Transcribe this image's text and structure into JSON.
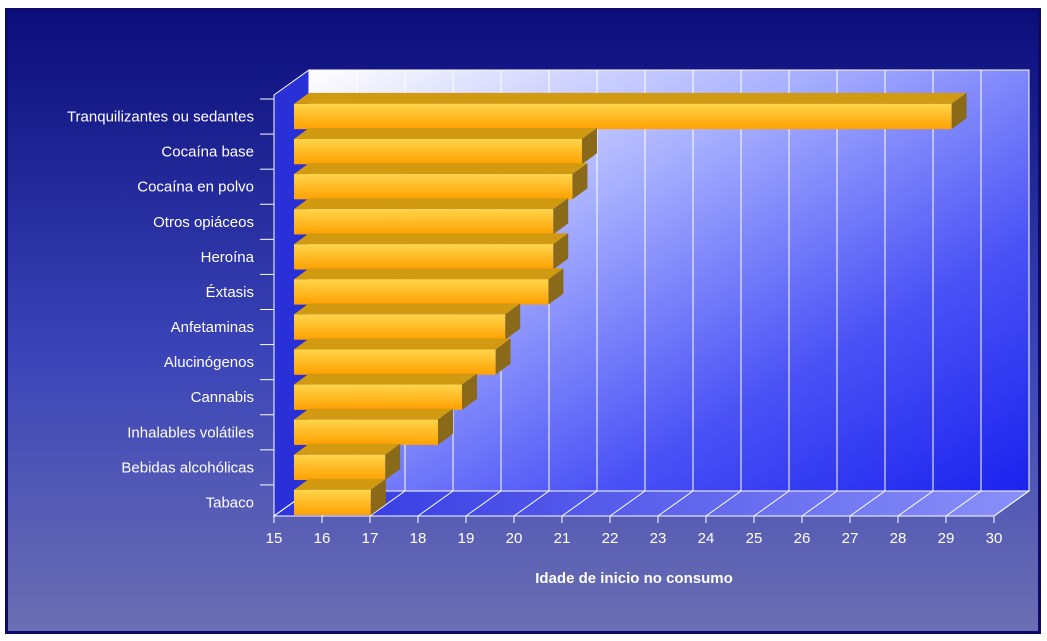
{
  "chart_data": {
    "type": "bar",
    "orientation": "horizontal",
    "style": "3d",
    "categories": [
      "Tranquilizantes ou sedantes",
      "Cocaína base",
      "Cocaína en polvo",
      "Otros opiáceos",
      "Heroína",
      "Éxtasis",
      "Anfetaminas",
      "Alucinógenos",
      "Cannabis",
      "Inhalables volátiles",
      "Bebidas alcohólicas",
      "Tabaco"
    ],
    "values": [
      28.7,
      21.0,
      20.8,
      20.4,
      20.4,
      20.3,
      19.4,
      19.2,
      18.5,
      18.0,
      16.9,
      16.6
    ],
    "xlabel": "Idade de inicio no consumo",
    "xlim": [
      15,
      30
    ],
    "xticks": [
      15,
      16,
      17,
      18,
      19,
      20,
      21,
      22,
      23,
      24,
      25,
      26,
      27,
      28,
      29,
      30
    ],
    "grid": true,
    "legend": "none",
    "colors": {
      "bar_front": "#ffc21a",
      "bar_top": "#d29a10",
      "bar_side": "#8a6a18",
      "background": "#0b0d7a",
      "wall": "#3a3cf0",
      "grid": "#ffffff",
      "text": "#ffffff"
    }
  }
}
